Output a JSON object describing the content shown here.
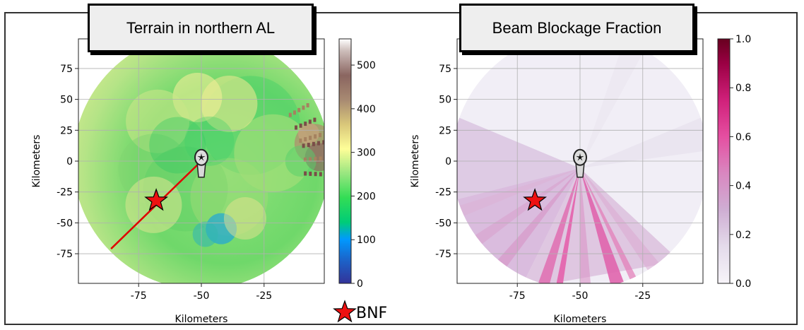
{
  "chart_data": [
    {
      "type": "heatmap",
      "title": "Terrain in northern AL",
      "xlabel": "Kilometers",
      "ylabel": "Kilometers",
      "xlim": [
        -99,
        -1
      ],
      "ylim": [
        -99,
        99
      ],
      "xticks": [
        -75,
        -50,
        -25
      ],
      "yticks": [
        75,
        50,
        25,
        0,
        -25,
        -50,
        -75
      ],
      "grid": true,
      "colorbar": {
        "vmin": 0,
        "vmax": 560,
        "ticks": [
          0,
          100,
          200,
          300,
          400,
          500
        ],
        "colormap": "terrain"
      },
      "radar_location": {
        "x": -50,
        "y": 3
      },
      "annotations": [
        {
          "type": "line",
          "label": "",
          "x": [
            -50,
            -86
          ],
          "y": [
            0,
            -71
          ],
          "color": "#e00000"
        },
        {
          "type": "star",
          "x": -68,
          "y": -32,
          "color": "#ee1111"
        }
      ]
    },
    {
      "type": "heatmap",
      "title": "Beam Blockage Fraction",
      "xlabel": "Kilometers",
      "ylabel": "Kilometers",
      "xlim": [
        -99,
        -1
      ],
      "ylim": [
        -99,
        99
      ],
      "xticks": [
        -75,
        -50,
        -25
      ],
      "yticks": [
        75,
        50,
        25,
        0,
        -25,
        -50,
        -75
      ],
      "grid": true,
      "colorbar": {
        "vmin": 0.0,
        "vmax": 1.0,
        "ticks": [
          "0.0",
          "0.2",
          "0.4",
          "0.6",
          "0.8",
          "1.0"
        ],
        "colormap": "PuRd"
      },
      "radar_location": {
        "x": -50,
        "y": 3
      },
      "annotations": [
        {
          "type": "star",
          "x": -68,
          "y": -32,
          "color": "#ee1111"
        }
      ]
    }
  ],
  "legend": {
    "label": "BNF",
    "marker": "star",
    "color": "#ee1111"
  }
}
